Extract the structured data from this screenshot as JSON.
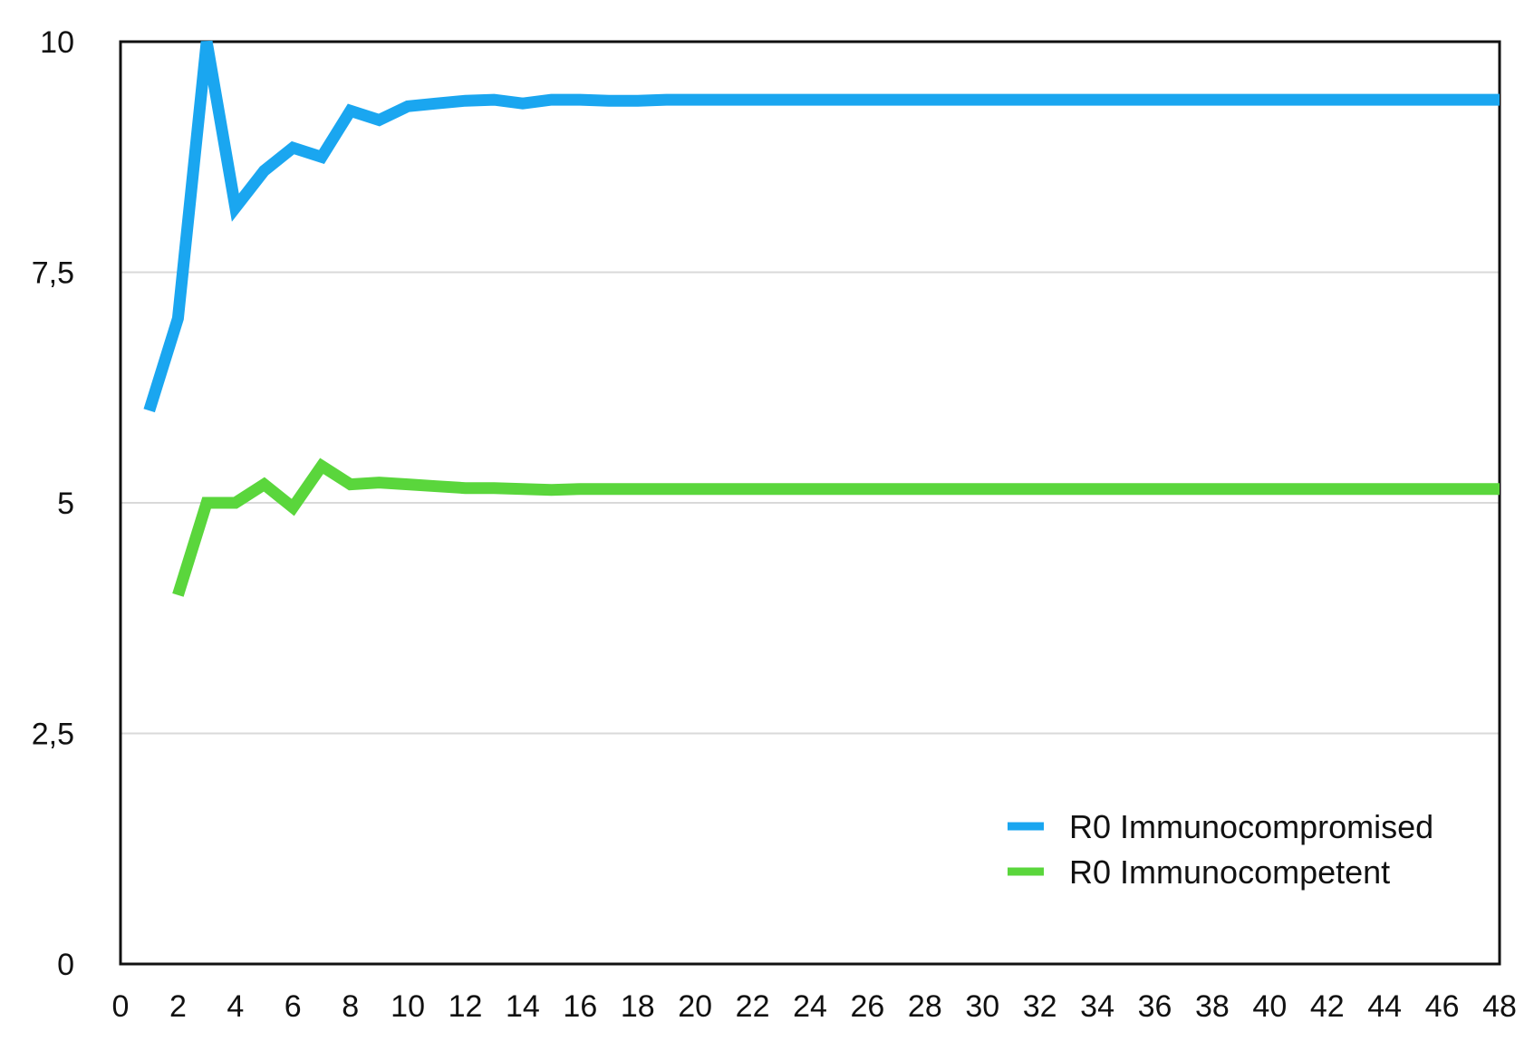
{
  "chart_data": {
    "type": "line",
    "title": "",
    "xlabel": "",
    "ylabel": "",
    "xlim": [
      0,
      48
    ],
    "ylim": [
      0,
      10
    ],
    "x_ticks": [
      0,
      2,
      4,
      6,
      8,
      10,
      12,
      14,
      16,
      18,
      20,
      22,
      24,
      26,
      28,
      30,
      32,
      34,
      36,
      38,
      40,
      42,
      44,
      46,
      48
    ],
    "y_ticks": [
      {
        "value": 0,
        "label": "0"
      },
      {
        "value": 2.5,
        "label": "2,5"
      },
      {
        "value": 5,
        "label": "5"
      },
      {
        "value": 7.5,
        "label": "7,5"
      },
      {
        "value": 10,
        "label": "10"
      }
    ],
    "grid": "horizontal",
    "legend_position": "bottom-right",
    "series": [
      {
        "name": "R0 Immunocompromised",
        "color": "#1aa6f0",
        "points": [
          [
            1,
            6.0
          ],
          [
            2,
            7.0
          ],
          [
            3,
            10.0
          ],
          [
            4,
            8.2
          ],
          [
            5,
            8.6
          ],
          [
            6,
            8.85
          ],
          [
            7,
            8.75
          ],
          [
            8,
            9.25
          ],
          [
            9,
            9.15
          ],
          [
            10,
            9.3
          ],
          [
            11,
            9.33
          ],
          [
            12,
            9.36
          ],
          [
            13,
            9.37
          ],
          [
            14,
            9.33
          ],
          [
            15,
            9.37
          ],
          [
            16,
            9.37
          ],
          [
            17,
            9.36
          ],
          [
            18,
            9.36
          ],
          [
            19,
            9.37
          ],
          [
            20,
            9.37
          ],
          [
            21,
            9.37
          ],
          [
            22,
            9.37
          ],
          [
            23,
            9.37
          ],
          [
            24,
            9.37
          ],
          [
            25,
            9.37
          ],
          [
            26,
            9.37
          ],
          [
            27,
            9.37
          ],
          [
            28,
            9.37
          ],
          [
            29,
            9.37
          ],
          [
            30,
            9.37
          ],
          [
            31,
            9.37
          ],
          [
            32,
            9.37
          ],
          [
            33,
            9.37
          ],
          [
            34,
            9.37
          ],
          [
            35,
            9.37
          ],
          [
            36,
            9.37
          ],
          [
            37,
            9.37
          ],
          [
            38,
            9.37
          ],
          [
            39,
            9.37
          ],
          [
            40,
            9.37
          ],
          [
            41,
            9.37
          ],
          [
            42,
            9.37
          ],
          [
            43,
            9.37
          ],
          [
            44,
            9.37
          ],
          [
            45,
            9.37
          ],
          [
            46,
            9.37
          ],
          [
            47,
            9.37
          ],
          [
            48,
            9.37
          ]
        ]
      },
      {
        "name": "R0 Immunocompetent",
        "color": "#5ad63c",
        "points": [
          [
            2,
            4.0
          ],
          [
            3,
            5.0
          ],
          [
            4,
            5.0
          ],
          [
            5,
            5.2
          ],
          [
            6,
            4.95
          ],
          [
            7,
            5.4
          ],
          [
            8,
            5.2
          ],
          [
            9,
            5.22
          ],
          [
            10,
            5.2
          ],
          [
            11,
            5.18
          ],
          [
            12,
            5.16
          ],
          [
            13,
            5.16
          ],
          [
            14,
            5.15
          ],
          [
            15,
            5.14
          ],
          [
            16,
            5.15
          ],
          [
            17,
            5.15
          ],
          [
            18,
            5.15
          ],
          [
            19,
            5.15
          ],
          [
            20,
            5.15
          ],
          [
            21,
            5.15
          ],
          [
            22,
            5.15
          ],
          [
            23,
            5.15
          ],
          [
            24,
            5.15
          ],
          [
            25,
            5.15
          ],
          [
            26,
            5.15
          ],
          [
            27,
            5.15
          ],
          [
            28,
            5.15
          ],
          [
            29,
            5.15
          ],
          [
            30,
            5.15
          ],
          [
            31,
            5.15
          ],
          [
            32,
            5.15
          ],
          [
            33,
            5.15
          ],
          [
            34,
            5.15
          ],
          [
            35,
            5.15
          ],
          [
            36,
            5.15
          ],
          [
            37,
            5.15
          ],
          [
            38,
            5.15
          ],
          [
            39,
            5.15
          ],
          [
            40,
            5.15
          ],
          [
            41,
            5.15
          ],
          [
            42,
            5.15
          ],
          [
            43,
            5.15
          ],
          [
            44,
            5.15
          ],
          [
            45,
            5.15
          ],
          [
            46,
            5.15
          ],
          [
            47,
            5.15
          ],
          [
            48,
            5.15
          ]
        ]
      }
    ]
  }
}
